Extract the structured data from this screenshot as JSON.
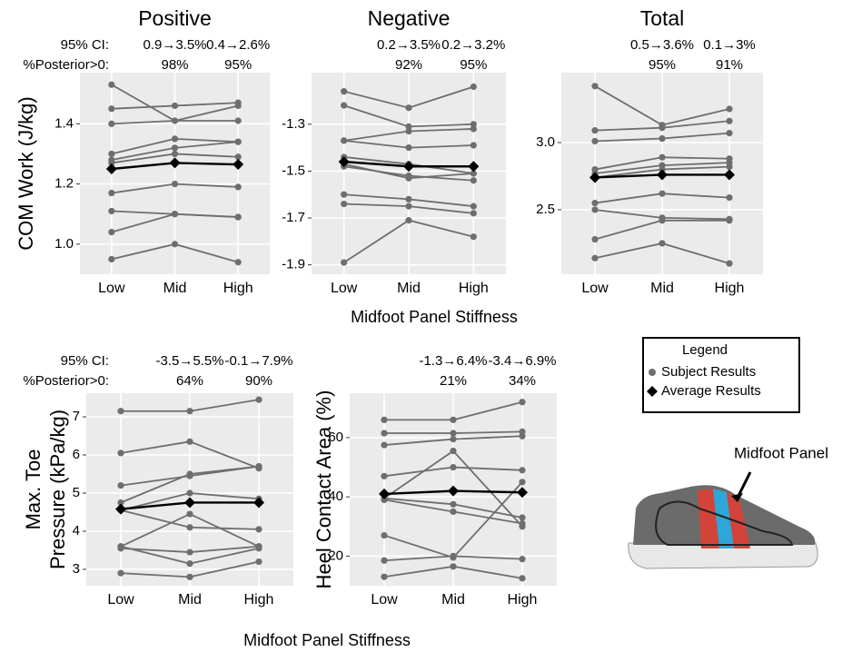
{
  "chart_data": [
    {
      "type": "line",
      "title": "Positive",
      "ylabel": [
        "COM Work (J/kg)"
      ],
      "categories": [
        "Low",
        "Mid",
        "High"
      ],
      "ylim": [
        0.9,
        1.57
      ],
      "yticks": [
        {
          "value": 1,
          "label": "1.0"
        },
        1.2,
        1.4
      ],
      "grid": true,
      "row_labels": [
        "95% CI:",
        "%Posterior>0:"
      ],
      "ci": [
        null,
        "0.9→3.5%",
        "0.4→2.6%"
      ],
      "posterior": [
        null,
        "98%",
        "95%"
      ],
      "series": [
        {
          "color": "#6e6e6e",
          "values": [
            1.53,
            1.41,
            1.46
          ]
        },
        {
          "color": "#6e6e6e",
          "values": [
            1.45,
            1.46,
            1.47
          ]
        },
        {
          "color": "#6e6e6e",
          "values": [
            1.4,
            1.41,
            1.41
          ]
        },
        {
          "color": "#6e6e6e",
          "values": [
            1.3,
            1.35,
            1.34
          ]
        },
        {
          "color": "#6e6e6e",
          "values": [
            1.28,
            1.32,
            1.34
          ]
        },
        {
          "color": "#6e6e6e",
          "values": [
            1.27,
            1.3,
            1.29
          ]
        },
        {
          "color": "#6e6e6e",
          "values": [
            1.17,
            1.2,
            1.19
          ]
        },
        {
          "color": "#6e6e6e",
          "values": [
            1.11,
            1.1,
            1.09
          ]
        },
        {
          "color": "#6e6e6e",
          "values": [
            1.04,
            1.1,
            1.09
          ]
        },
        {
          "color": "#6e6e6e",
          "values": [
            0.95,
            1.0,
            0.94
          ]
        },
        {
          "color": "#000000",
          "marker": "diamond",
          "values": [
            1.25,
            1.27,
            1.265
          ]
        }
      ]
    },
    {
      "type": "line",
      "title": "Negative",
      "xlabel": "Midfoot Panel Stiffness",
      "categories": [
        "Low",
        "Mid",
        "High"
      ],
      "ylim": [
        -1.94,
        -1.08
      ],
      "yticks": [
        -1.9,
        -1.7,
        -1.5,
        -1.3
      ],
      "grid": true,
      "ci": [
        null,
        "0.2→3.5%",
        "0.2→3.2%"
      ],
      "posterior": [
        null,
        "92%",
        "95%"
      ],
      "series": [
        {
          "color": "#6e6e6e",
          "values": [
            -1.16,
            -1.23,
            -1.14
          ]
        },
        {
          "color": "#6e6e6e",
          "values": [
            -1.22,
            -1.31,
            -1.3
          ]
        },
        {
          "color": "#6e6e6e",
          "values": [
            -1.37,
            -1.33,
            -1.32
          ]
        },
        {
          "color": "#6e6e6e",
          "values": [
            -1.37,
            -1.4,
            -1.39
          ]
        },
        {
          "color": "#6e6e6e",
          "values": [
            -1.44,
            -1.47,
            -1.51
          ]
        },
        {
          "color": "#6e6e6e",
          "values": [
            -1.47,
            -1.53,
            -1.51
          ]
        },
        {
          "color": "#6e6e6e",
          "values": [
            -1.48,
            -1.52,
            -1.54
          ]
        },
        {
          "color": "#6e6e6e",
          "values": [
            -1.6,
            -1.62,
            -1.65
          ]
        },
        {
          "color": "#6e6e6e",
          "values": [
            -1.64,
            -1.65,
            -1.68
          ]
        },
        {
          "color": "#6e6e6e",
          "values": [
            -1.89,
            -1.71,
            -1.78
          ]
        },
        {
          "color": "#000000",
          "marker": "diamond",
          "values": [
            -1.46,
            -1.48,
            -1.48
          ]
        }
      ]
    },
    {
      "type": "line",
      "title": "Total",
      "categories": [
        "Low",
        "Mid",
        "High"
      ],
      "ylim": [
        2.02,
        3.52
      ],
      "yticks": [
        2.5,
        {
          "value": 3,
          "label": "3.0"
        }
      ],
      "grid": true,
      "ci": [
        null,
        "0.5→3.6%",
        "0.1→3%"
      ],
      "posterior": [
        null,
        "95%",
        "91%"
      ],
      "series": [
        {
          "color": "#6e6e6e",
          "values": [
            3.42,
            3.13,
            3.25
          ]
        },
        {
          "color": "#6e6e6e",
          "values": [
            3.09,
            3.11,
            3.16
          ]
        },
        {
          "color": "#6e6e6e",
          "values": [
            3.01,
            3.03,
            3.07
          ]
        },
        {
          "color": "#6e6e6e",
          "values": [
            2.8,
            2.89,
            2.88
          ]
        },
        {
          "color": "#6e6e6e",
          "values": [
            2.77,
            2.83,
            2.85
          ]
        },
        {
          "color": "#6e6e6e",
          "values": [
            2.74,
            2.8,
            2.82
          ]
        },
        {
          "color": "#6e6e6e",
          "values": [
            2.55,
            2.62,
            2.59
          ]
        },
        {
          "color": "#6e6e6e",
          "values": [
            2.5,
            2.44,
            2.43
          ]
        },
        {
          "color": "#6e6e6e",
          "values": [
            2.28,
            2.42,
            2.42
          ]
        },
        {
          "color": "#6e6e6e",
          "values": [
            2.14,
            2.25,
            2.1
          ]
        },
        {
          "color": "#000000",
          "marker": "diamond",
          "values": [
            2.74,
            2.76,
            2.76
          ]
        }
      ]
    },
    {
      "type": "line",
      "ylabel": [
        "Max. Toe",
        "Pressure (kPa/kg)"
      ],
      "xlabel": "Midfoot Panel Stiffness",
      "categories": [
        "Low",
        "Mid",
        "High"
      ],
      "ylim": [
        2.57,
        7.62
      ],
      "yticks": [
        3,
        4,
        5,
        6,
        7
      ],
      "grid": true,
      "row_labels": [
        "95% CI:",
        "%Posterior>0:"
      ],
      "ci": [
        null,
        "-3.5→5.5%",
        "-0.1→7.9%"
      ],
      "posterior": [
        null,
        "64%",
        "90%"
      ],
      "series": [
        {
          "color": "#6e6e6e",
          "values": [
            7.15,
            7.15,
            7.45
          ]
        },
        {
          "color": "#6e6e6e",
          "values": [
            6.05,
            6.35,
            5.65
          ]
        },
        {
          "color": "#6e6e6e",
          "values": [
            5.2,
            5.45,
            5.7
          ]
        },
        {
          "color": "#6e6e6e",
          "values": [
            4.75,
            5.5,
            5.7
          ]
        },
        {
          "color": "#6e6e6e",
          "values": [
            4.55,
            5.0,
            4.85
          ]
        },
        {
          "color": "#6e6e6e",
          "values": [
            4.55,
            4.1,
            4.05
          ]
        },
        {
          "color": "#6e6e6e",
          "values": [
            3.6,
            4.45,
            3.6
          ]
        },
        {
          "color": "#6e6e6e",
          "values": [
            3.55,
            3.45,
            3.6
          ]
        },
        {
          "color": "#6e6e6e",
          "values": [
            3.6,
            3.15,
            3.55
          ]
        },
        {
          "color": "#6e6e6e",
          "values": [
            2.9,
            2.8,
            3.2
          ]
        },
        {
          "color": "#000000",
          "marker": "diamond",
          "values": [
            4.58,
            4.75,
            4.75
          ]
        }
      ]
    },
    {
      "type": "line",
      "ylabel": [
        "Heel Contact Area (%)"
      ],
      "categories": [
        "Low",
        "Mid",
        "High"
      ],
      "ylim": [
        10,
        75
      ],
      "yticks": [
        20,
        40,
        60
      ],
      "grid": true,
      "ci": [
        null,
        "-1.3→6.4%",
        "-3.4→6.9%"
      ],
      "posterior": [
        null,
        "21%",
        "34%"
      ],
      "series": [
        {
          "color": "#6e6e6e",
          "values": [
            66,
            66,
            72
          ]
        },
        {
          "color": "#6e6e6e",
          "values": [
            61.5,
            61.5,
            62
          ]
        },
        {
          "color": "#6e6e6e",
          "values": [
            57.5,
            59.5,
            60.5
          ]
        },
        {
          "color": "#6e6e6e",
          "values": [
            47,
            50,
            49
          ]
        },
        {
          "color": "#6e6e6e",
          "values": [
            39.5,
            55.5,
            30
          ]
        },
        {
          "color": "#6e6e6e",
          "values": [
            39.5,
            37.5,
            33
          ]
        },
        {
          "color": "#6e6e6e",
          "values": [
            39,
            35,
            31
          ]
        },
        {
          "color": "#6e6e6e",
          "values": [
            27,
            19.5,
            45
          ]
        },
        {
          "color": "#6e6e6e",
          "values": [
            18.5,
            20,
            19
          ]
        },
        {
          "color": "#6e6e6e",
          "values": [
            13,
            16.5,
            12.5
          ]
        },
        {
          "color": "#000000",
          "marker": "diamond",
          "values": [
            41,
            42,
            41.5
          ]
        }
      ]
    }
  ],
  "legend": {
    "title": "Legend",
    "entries": [
      {
        "name": "Subject Results",
        "color": "#6e6e6e",
        "marker": "circle"
      },
      {
        "name": "Average Results",
        "color": "#000000",
        "marker": "diamond"
      }
    ]
  },
  "illustration_label": "Midfoot Panel"
}
